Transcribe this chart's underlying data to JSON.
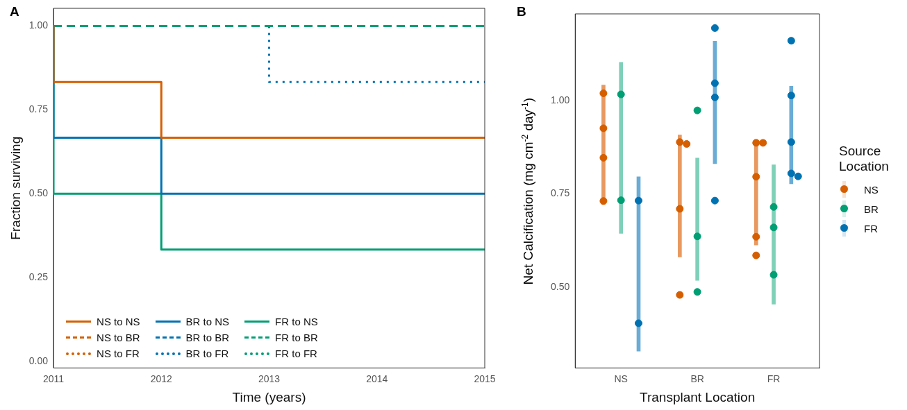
{
  "chart_data": [
    {
      "type": "step",
      "title": "A",
      "xlabel": "Time (years)",
      "ylabel": "Fraction surviving",
      "x": [
        2011,
        2012,
        2013,
        2014,
        2015
      ],
      "xlim": [
        2011,
        2015
      ],
      "xticks": [
        2011,
        2012,
        2013,
        2014,
        2015
      ],
      "ylim": [
        -0.02,
        1.053
      ],
      "yticks": [
        {
          "value": 0,
          "label": "0.00"
        },
        {
          "value": 0.25,
          "label": "0.25"
        },
        {
          "value": 0.5,
          "label": "0.50"
        },
        {
          "value": 0.75,
          "label": "0.75"
        },
        {
          "value": 1,
          "label": "1.00"
        }
      ],
      "grid": false,
      "legend": "bottom left",
      "series": [
        {
          "name": "NS to NS",
          "color": "#d55e00",
          "line_style": "solid",
          "values": [
            1,
            0.833,
            0.667,
            0.667,
            0.667
          ]
        },
        {
          "name": "BR to NS",
          "color": "#0072b2",
          "line_style": "solid",
          "values": [
            1,
            0.667,
            0.5,
            0.5,
            0.5
          ]
        },
        {
          "name": "FR to NS",
          "color": "#009e73",
          "line_style": "solid",
          "values": [
            1,
            0.5,
            0.333,
            0.333,
            0.333
          ]
        },
        {
          "name": "NS to BR",
          "color": "#d55e00",
          "line_style": "dashed",
          "values": [
            null,
            null,
            null,
            null,
            null
          ]
        },
        {
          "name": "BR to BR",
          "color": "#0072b2",
          "line_style": "dashed",
          "values": [
            null,
            null,
            null,
            null,
            null
          ]
        },
        {
          "name": "FR to BR",
          "color": "#009e73",
          "line_style": "dashed",
          "values": [
            1,
            1,
            1,
            1,
            1
          ]
        },
        {
          "name": "NS to FR",
          "color": "#d55e00",
          "line_style": "dotted",
          "values": [
            null,
            null,
            null,
            null,
            null
          ]
        },
        {
          "name": "BR to FR",
          "color": "#0072b2",
          "line_style": "dotted",
          "values": [
            null,
            null,
            1,
            0.833,
            0.833
          ]
        },
        {
          "name": "FR to FR",
          "color": "#009e73",
          "line_style": "dotted",
          "values": [
            null,
            null,
            null,
            null,
            null
          ]
        }
      ]
    },
    {
      "type": "scatter",
      "title": "B",
      "xlabel": "Transplant Location",
      "ylabel": "Net Calcification (mg cm$^{-2}$ day$^{-1}$)",
      "legend_title": "Source Location",
      "legend": "right",
      "categories": [
        "NS",
        "BR",
        "FR"
      ],
      "ylim": [
        0.283,
        1.233
      ],
      "yticks": [
        {
          "value": 0.5,
          "label": "0.50"
        },
        {
          "value": 0.75,
          "label": "0.75"
        },
        {
          "value": 1,
          "label": "1.00"
        }
      ],
      "grid": false,
      "marker": "circle",
      "series": [
        {
          "type": "bar",
          "color": "#e8995f",
          "base": [
            0.722,
            0.581,
            0.613
          ],
          "values": [
            0.32,
            0.327,
            0.283
          ]
        },
        {
          "type": "bar",
          "color": "#7fd0b8",
          "base": [
            0.644,
            0.518,
            0.454
          ],
          "values": [
            0.459,
            0.328,
            0.374
          ]
        },
        {
          "type": "bar",
          "color": "#6aacd6",
          "base": [
            0.328,
            0.831,
            0.777
          ],
          "values": [
            0.468,
            0.329,
            0.262
          ]
        },
        {
          "type": "scatter",
          "name": "NS",
          "color": "#d55e00",
          "x": [
            "NS",
            "NS",
            "NS",
            "NS",
            "BR",
            "BR",
            "BR",
            "BR",
            "FR",
            "FR",
            "FR",
            "FR",
            "FR"
          ],
          "values": [
            1.02,
            0.926,
            0.847,
            0.731,
            0.889,
            0.884,
            0.71,
            0.479,
            0.887,
            0.887,
            0.796,
            0.635,
            0.585
          ]
        },
        {
          "type": "scatter",
          "name": "BR",
          "color": "#009e73",
          "x": [
            "NS",
            "NS",
            "BR",
            "BR",
            "BR",
            "FR",
            "FR",
            "FR"
          ],
          "values": [
            1.017,
            0.733,
            0.974,
            0.636,
            0.487,
            0.715,
            0.66,
            0.533
          ]
        },
        {
          "type": "scatter",
          "name": "FR",
          "color": "#0072b2",
          "x": [
            "NS",
            "NS",
            "BR",
            "BR",
            "BR",
            "BR",
            "FR",
            "FR",
            "FR",
            "FR",
            "FR"
          ],
          "values": [
            0.732,
            0.403,
            1.195,
            1.047,
            1.009,
            0.732,
            1.161,
            1.014,
            0.889,
            0.805,
            0.797
          ]
        }
      ]
    }
  ]
}
